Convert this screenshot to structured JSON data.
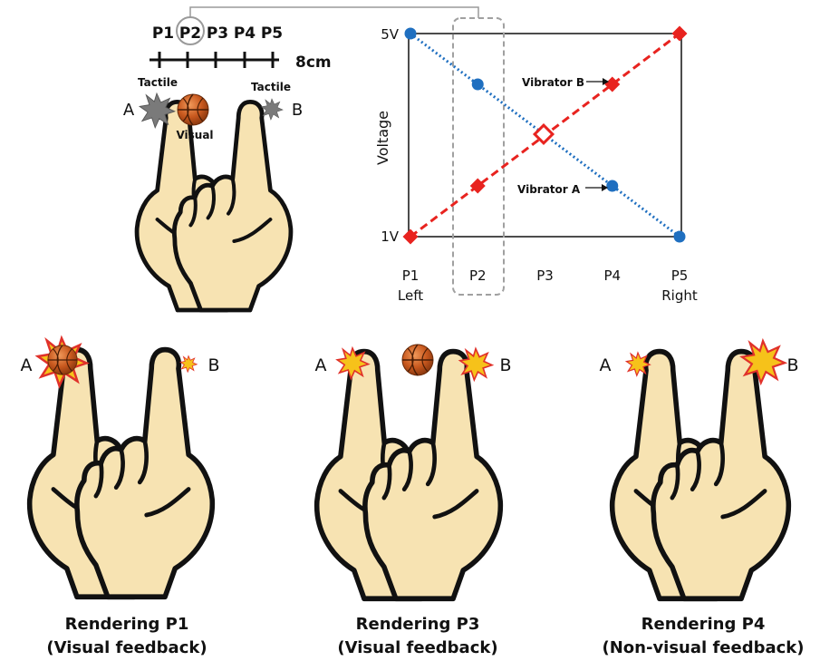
{
  "top_left": {
    "ruler_labels": [
      "P1",
      "P2",
      "P3",
      "P4",
      "P5"
    ],
    "ruler_length": "8cm",
    "finger_a": "A",
    "finger_b": "B",
    "tactile_a": "Tactile",
    "tactile_b": "Tactile",
    "visual": "Visual"
  },
  "chart_data": {
    "type": "line",
    "x": [
      "P1",
      "P2",
      "P3",
      "P4",
      "P5"
    ],
    "x_sublabels": [
      "Left",
      "",
      "",
      "",
      "Right"
    ],
    "ylabel": "Voltage",
    "yticks": [
      "5V",
      "1V"
    ],
    "ylim": [
      1,
      5
    ],
    "highlighted_category": "P2",
    "intersection_category": "P3",
    "series": [
      {
        "name": "Vibrator A",
        "values": [
          5,
          4,
          3,
          2,
          1
        ],
        "color": "#1f6fc0",
        "marker": "circle",
        "style": "dotted"
      },
      {
        "name": "Vibrator B",
        "values": [
          1,
          2,
          3,
          4,
          5
        ],
        "color": "#e8231f",
        "marker": "diamond",
        "style": "dashed"
      }
    ]
  },
  "renderings": [
    {
      "title": "Rendering P1",
      "subtitle": "(Visual feedback)",
      "label_a": "A",
      "label_b": "B"
    },
    {
      "title": "Rendering P3",
      "subtitle": "(Visual feedback)",
      "label_a": "A",
      "label_b": "B"
    },
    {
      "title": "Rendering P4",
      "subtitle": "(Non-visual feedback)",
      "label_a": "A",
      "label_b": "B"
    }
  ],
  "colors": {
    "skin": "#f7e3b2",
    "outline": "#111111",
    "burst_fill": "#f6c21a",
    "burst_edge": "#e0312a",
    "tactile_gray": "#7a7a7a",
    "ball": "#c8581e",
    "highlight_box": "#a0a0a0"
  }
}
